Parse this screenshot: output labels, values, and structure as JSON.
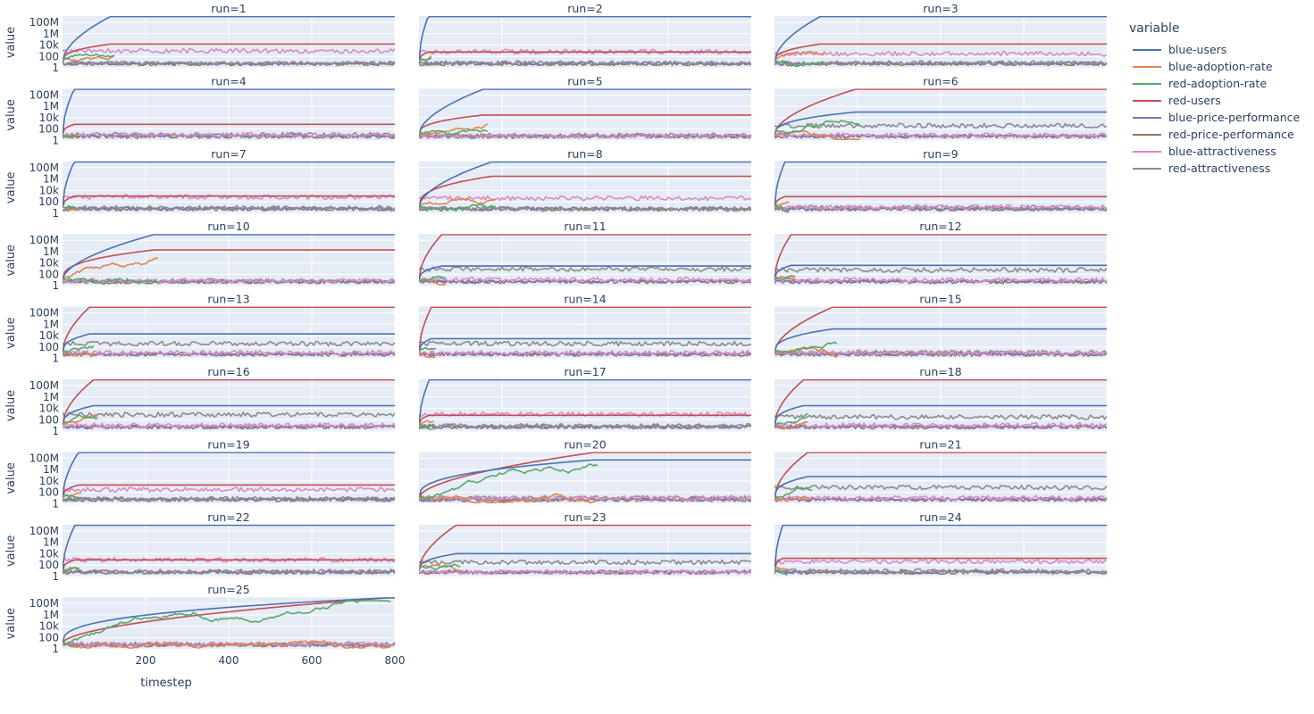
{
  "chart_data": {
    "type": "line",
    "layout": "facet-grid",
    "facet_rows": 9,
    "facet_cols": 3,
    "x_label": "timestep",
    "y_label": "value",
    "x_range": [
      0,
      800
    ],
    "x_ticks": [
      200,
      400,
      600,
      800
    ],
    "x_tick_labels": [
      "200",
      "400",
      "600",
      "800"
    ],
    "y_scale": "log",
    "y_range_decades": [
      -0.15,
      9.1
    ],
    "y_ticks": [
      1,
      100,
      10000,
      1000000,
      100000000
    ],
    "y_tick_labels": [
      "1",
      "100",
      "10k",
      "1M",
      "100M"
    ],
    "grid": true,
    "legend": {
      "title": "variable",
      "position": "top-right",
      "items": [
        {
          "name": "blue-users",
          "color": "#4c72b0"
        },
        {
          "name": "blue-adoption-rate",
          "color": "#dd8452"
        },
        {
          "name": "red-adoption-rate",
          "color": "#55a868"
        },
        {
          "name": "red-users",
          "color": "#c44e52"
        },
        {
          "name": "blue-price-performance",
          "color": "#8172b3"
        },
        {
          "name": "red-price-performance",
          "color": "#937860"
        },
        {
          "name": "blue-attractiveness",
          "color": "#da8bc3"
        },
        {
          "name": "red-attractiveness",
          "color": "#8c8c8c"
        }
      ]
    },
    "panels": [
      {
        "label": "run=1",
        "winner": "blue",
        "t_final": 115,
        "blue_final": 1000000000,
        "red_final": 15000,
        "brAtt": 1000,
        "rrAtt": 6
      },
      {
        "label": "run=2",
        "winner": "blue",
        "t_final": 22,
        "blue_final": 1000000000,
        "red_final": 600,
        "brAtt": 700,
        "rrAtt": 7
      },
      {
        "label": "run=3",
        "winner": "blue",
        "t_final": 110,
        "blue_final": 1000000000,
        "red_final": 15000,
        "brAtt": 300,
        "rrAtt": 7
      },
      {
        "label": "run=4",
        "winner": "blue",
        "t_final": 28,
        "blue_final": 1000000000,
        "red_final": 700,
        "brAtt": 10,
        "rrAtt": 10
      },
      {
        "label": "run=5",
        "winner": "blue",
        "t_final": 155,
        "blue_final": 1000000000,
        "red_final": 30000,
        "brAtt": 6,
        "rrAtt": 8
      },
      {
        "label": "run=6",
        "winner": "red",
        "t_final": 195,
        "blue_final": 100000,
        "red_final": 1000000000,
        "brAtt": 8,
        "rrAtt": 400
      },
      {
        "label": "run=7",
        "winner": "blue",
        "t_final": 28,
        "blue_final": 1000000000,
        "red_final": 1000,
        "brAtt": 700,
        "rrAtt": 8
      },
      {
        "label": "run=8",
        "winner": "blue",
        "t_final": 175,
        "blue_final": 1000000000,
        "red_final": 3000000,
        "brAtt": 400,
        "rrAtt": 6
      },
      {
        "label": "run=9",
        "winner": "blue",
        "t_final": 25,
        "blue_final": 1000000000,
        "red_final": 800,
        "brAtt": 12,
        "rrAtt": 9
      },
      {
        "label": "run=10",
        "winner": "blue",
        "t_final": 220,
        "blue_final": 1000000000,
        "red_final": 2000000,
        "brAtt": 8,
        "rrAtt": 7
      },
      {
        "label": "run=11",
        "winner": "red",
        "t_final": 55,
        "blue_final": 3000,
        "red_final": 1000000000,
        "brAtt": 12,
        "rrAtt": 900
      },
      {
        "label": "run=12",
        "winner": "red",
        "t_final": 40,
        "blue_final": 4000,
        "red_final": 1000000000,
        "brAtt": 10,
        "rrAtt": 600
      },
      {
        "label": "run=13",
        "winner": "red",
        "t_final": 65,
        "blue_final": 20000,
        "red_final": 1000000000,
        "brAtt": 10,
        "rrAtt": 400
      },
      {
        "label": "run=14",
        "winner": "red",
        "t_final": 30,
        "blue_final": 3000,
        "red_final": 1000000000,
        "brAtt": 10,
        "rrAtt": 400
      },
      {
        "label": "run=15",
        "winner": "red",
        "t_final": 140,
        "blue_final": 150000,
        "red_final": 1000000000,
        "brAtt": 10,
        "rrAtt": 12
      },
      {
        "label": "run=16",
        "winner": "red",
        "t_final": 75,
        "blue_final": 30000,
        "red_final": 1000000000,
        "brAtt": 10,
        "rrAtt": 800
      },
      {
        "label": "run=17",
        "winner": "blue",
        "t_final": 25,
        "blue_final": 1000000000,
        "red_final": 600,
        "brAtt": 900,
        "rrAtt": 8
      },
      {
        "label": "run=18",
        "winner": "red",
        "t_final": 70,
        "blue_final": 30000,
        "red_final": 1000000000,
        "brAtt": 12,
        "rrAtt": 300
      },
      {
        "label": "run=19",
        "winner": "blue",
        "t_final": 38,
        "blue_final": 1000000000,
        "red_final": 2000,
        "brAtt": 300,
        "rrAtt": 7
      },
      {
        "label": "run=20",
        "winner": "red",
        "t_final": 420,
        "blue_final": 50000000,
        "red_final": 1000000000,
        "brAtt": 10,
        "rrAtt": 10
      },
      {
        "label": "run=21",
        "winner": "red",
        "t_final": 80,
        "blue_final": 60000,
        "red_final": 1000000000,
        "brAtt": 10,
        "rrAtt": 700
      },
      {
        "label": "run=22",
        "winner": "blue",
        "t_final": 30,
        "blue_final": 1000000000,
        "red_final": 800,
        "brAtt": 800,
        "rrAtt": 7
      },
      {
        "label": "run=23",
        "winner": "red",
        "t_final": 90,
        "blue_final": 10000,
        "red_final": 1000000000,
        "brAtt": 6,
        "rrAtt": 300
      },
      {
        "label": "run=24",
        "winner": "blue",
        "t_final": 20,
        "blue_final": 1000000000,
        "red_final": 1500,
        "brAtt": 400,
        "rrAtt": 8
      },
      {
        "label": "run=25",
        "winner": "red",
        "t_final": 780,
        "blue_final": 1000000000,
        "red_final": 1000000000,
        "brAtt": 8,
        "rrAtt": 7
      }
    ]
  }
}
